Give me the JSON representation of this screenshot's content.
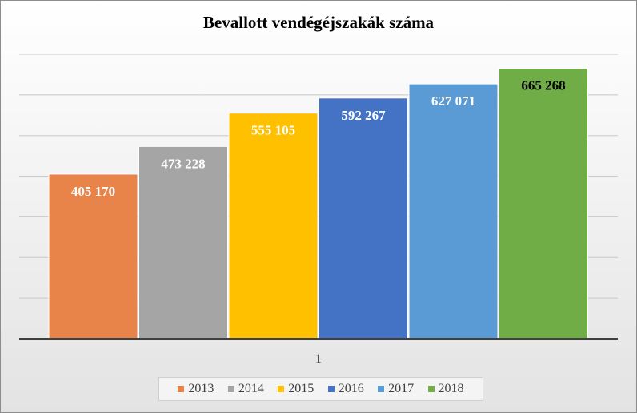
{
  "chart_data": {
    "type": "bar",
    "title": "Bevallott vendégéjszakák száma",
    "categories": [
      "1"
    ],
    "series": [
      {
        "name": "2013",
        "values": [
          405170
        ],
        "label": "405 170",
        "color": "#e8844a"
      },
      {
        "name": "2014",
        "values": [
          473228
        ],
        "label": "473 228",
        "color": "#a5a5a5"
      },
      {
        "name": "2015",
        "values": [
          555105
        ],
        "label": "555 105",
        "color": "#ffc000"
      },
      {
        "name": "2016",
        "values": [
          592267
        ],
        "label": "592 267",
        "color": "#4472c4"
      },
      {
        "name": "2017",
        "values": [
          627071
        ],
        "label": "627 071",
        "color": "#5b9bd5"
      },
      {
        "name": "2018",
        "values": [
          665268
        ],
        "label": "665 268",
        "color": "#70ad47"
      }
    ],
    "ylim": [
      0,
      700000
    ],
    "grid": true,
    "legend": "bottom"
  }
}
